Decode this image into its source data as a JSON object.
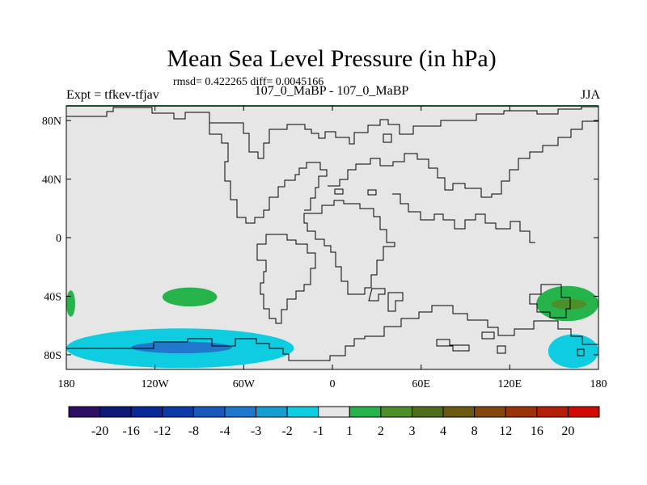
{
  "title": "Mean Sea Level Pressure (in hPa)",
  "stats": "rmsd= 0.422265 diff= 0.0045166",
  "left_label": "Expt = tfkev-tfjav",
  "center_label": "107_0_MaBP - 107_0_MaBP",
  "right_label": "JJA",
  "colors": {
    "land_outline": "#000000",
    "map_border": "#000000",
    "top_edge": "#2fa84f",
    "neutral": "#e6e6e6"
  },
  "chart_data": {
    "type": "heatmap",
    "title": "Mean Sea Level Pressure (in hPa)",
    "xlim": [
      -180,
      180
    ],
    "ylim": [
      -90,
      90
    ],
    "x_ticks": [
      -180,
      -120,
      -60,
      0,
      60,
      120,
      180
    ],
    "x_tick_labels": [
      "180",
      "120W",
      "60W",
      "0",
      "60E",
      "120E",
      "180"
    ],
    "y_ticks": [
      80,
      40,
      0,
      -40,
      -80
    ],
    "y_tick_labels": [
      "80N",
      "40N",
      "0",
      "40S",
      "80S"
    ],
    "colorbar": {
      "colors": [
        "#2d0f64",
        "#0f1978",
        "#0a2896",
        "#0c3aa6",
        "#1a58bc",
        "#1f78cc",
        "#169ed2",
        "#0ecde0",
        "#e6e6e6",
        "#27b34b",
        "#4e8f2a",
        "#4f6e1c",
        "#6a5a12",
        "#83460c",
        "#9c320a",
        "#b51e08",
        "#d20a06"
      ],
      "labels": [
        "-20",
        "-16",
        "-12",
        "-8",
        "-4",
        "-3",
        "-2",
        "-1",
        "1",
        "2",
        "3",
        "4",
        "8",
        "12",
        "16",
        "20"
      ]
    },
    "regions": [
      {
        "name": "s-pacific-low-outer",
        "value": -2,
        "color": "#0ecde0",
        "lon": [
          -180,
          -26
        ],
        "lat": [
          -62,
          -89
        ]
      },
      {
        "name": "s-pacific-low-inner",
        "value": -3,
        "color": "#1f78cc",
        "lon": [
          -136,
          -68
        ],
        "lat": [
          -71,
          -79
        ]
      },
      {
        "name": "s-pacific-high",
        "value": 2,
        "color": "#27b34b",
        "lon": [
          -115,
          -78
        ],
        "lat": [
          -34,
          -47
        ]
      },
      {
        "name": "dateline-west-high",
        "value": 2,
        "color": "#27b34b",
        "lon": [
          -180,
          -174
        ],
        "lat": [
          -36,
          -54
        ]
      },
      {
        "name": "s-indian-high",
        "value": 2,
        "color": "#27b34b",
        "lon": [
          138,
          180
        ],
        "lat": [
          -33,
          -57
        ]
      },
      {
        "name": "s-indian-high-core",
        "value": 3,
        "color": "#4e8f2a",
        "lon": [
          148,
          172
        ],
        "lat": [
          -42,
          -49
        ]
      },
      {
        "name": "antarctic-east-low",
        "value": -2,
        "color": "#0ecde0",
        "lon": [
          146,
          180
        ],
        "lat": [
          -66,
          -89
        ]
      }
    ]
  }
}
